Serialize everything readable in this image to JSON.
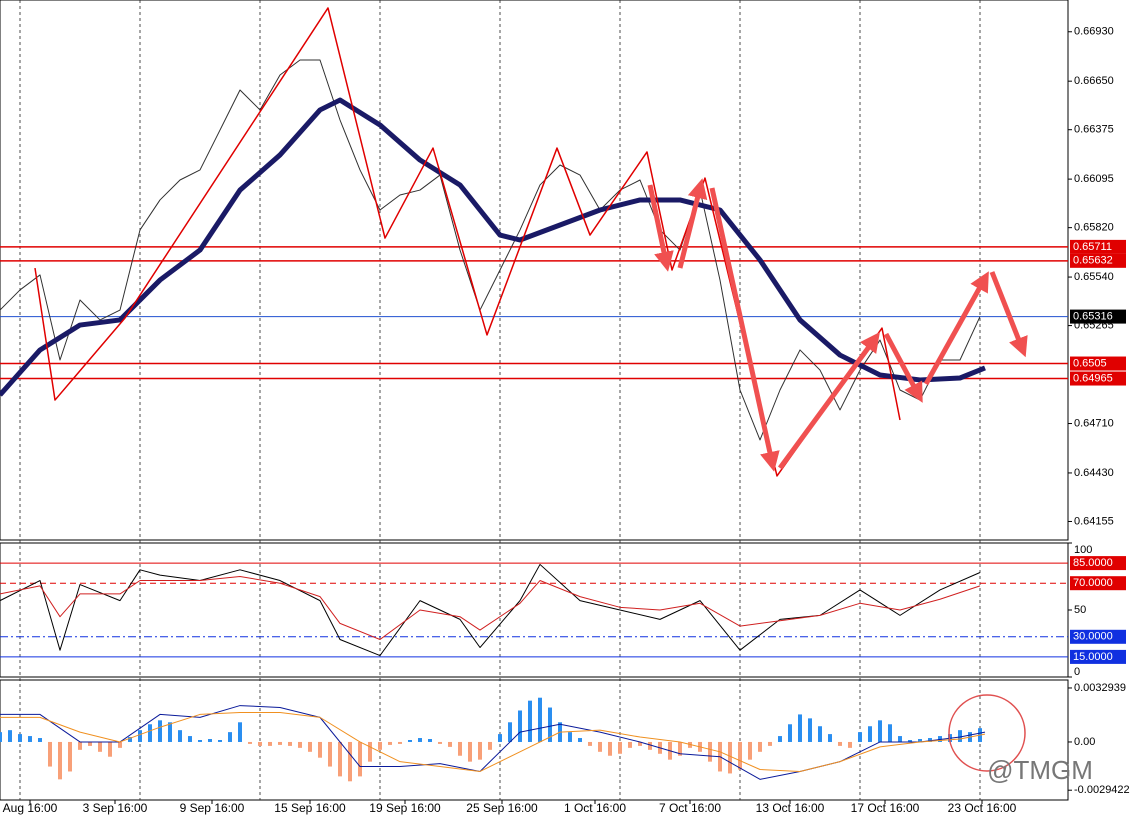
{
  "chart_data": [
    {
      "type": "line",
      "xlim": [
        0,
        53.4
      ],
      "ylim": [
        0.6405,
        0.6711
      ],
      "yticks": [
        {
          "value": 0.6693,
          "label": "0.66930"
        },
        {
          "value": 0.6665,
          "label": "0.66650"
        },
        0.66375,
        0.66095,
        {
          "value": 0.6582,
          "label": "0.65820"
        },
        {
          "value": 0.6554,
          "label": "0.65540"
        },
        0.65265,
        {
          "value": 0.6471,
          "label": "0.64710"
        },
        {
          "value": 0.6443,
          "label": "0.64430"
        },
        0.64155
      ],
      "xgrid": [
        1,
        7,
        13,
        19,
        25,
        31,
        37,
        43,
        49
      ],
      "levels": [
        {
          "value": 0.65711,
          "color": "#e00000"
        },
        {
          "value": 0.65632,
          "color": "#e00000"
        },
        {
          "value": 0.65316,
          "color": "#2050d0"
        },
        {
          "value": 0.6505,
          "color": "#e00000"
        },
        {
          "value": 0.64965,
          "color": "#e00000"
        }
      ],
      "series": [
        {
          "color": "#303030",
          "x": [
            0,
            1,
            2,
            3,
            4,
            5,
            6,
            7,
            8,
            9,
            10,
            11,
            12,
            13,
            14,
            15,
            16,
            17,
            18,
            19,
            20,
            21,
            22,
            23,
            24,
            25,
            26,
            27,
            28,
            29,
            30,
            31,
            32,
            33,
            34,
            35,
            36,
            37,
            38,
            39,
            40,
            41,
            42,
            43,
            44,
            45,
            46,
            47,
            48,
            49
          ],
          "values": [
            0.65353,
            0.65467,
            0.65552,
            0.6507,
            0.6541,
            0.65297,
            0.65353,
            0.65807,
            0.65977,
            0.6609,
            0.66147,
            0.66373,
            0.666,
            0.66487,
            0.66685,
            0.6677,
            0.6677,
            0.6643,
            0.66147,
            0.6592,
            0.66005,
            0.66033,
            0.66118,
            0.65693,
            0.65353,
            0.6558,
            0.65807,
            0.66062,
            0.66175,
            0.66118,
            0.6592,
            0.66033,
            0.6609,
            0.65807,
            0.65693,
            0.66033,
            0.65523,
            0.649,
            0.64617,
            0.649,
            0.65127,
            0.65013,
            0.64787,
            0.65013,
            0.65183,
            0.649,
            0.64843,
            0.6507,
            0.6507,
            0.65316
          ]
        },
        {
          "color": "#1a1a66",
          "x": [
            0,
            2,
            4,
            6,
            8,
            10,
            12,
            14,
            16,
            17,
            19,
            21,
            23,
            25,
            26,
            28,
            30,
            32,
            34,
            36,
            38,
            40,
            42,
            44,
            46,
            48,
            49.25
          ],
          "values": [
            0.64872,
            0.65127,
            0.65268,
            0.65297,
            0.65523,
            0.65693,
            0.66033,
            0.66232,
            0.66487,
            0.66543,
            0.66402,
            0.66203,
            0.66062,
            0.65778,
            0.6575,
            0.65835,
            0.6592,
            0.65977,
            0.65977,
            0.6592,
            0.65637,
            0.65297,
            0.65098,
            0.64985,
            0.64957,
            0.64968,
            0.65025
          ]
        },
        {
          "color": "#e00000",
          "x": [
            1.75,
            2.75,
            6.25,
            16.4,
            19.25,
            21.65,
            24.35,
            27.85,
            29.5,
            32.35,
            33.6,
            35.25,
            38.85,
            44.1,
            45
          ],
          "values": [
            0.65591,
            0.64843,
            0.65308,
            0.67065,
            0.65761,
            0.66271,
            0.65212,
            0.66271,
            0.65778,
            0.66249,
            0.6558,
            0.66101,
            0.64413,
            0.65251,
            0.6473
          ]
        }
      ]
    },
    {
      "type": "line",
      "xlim": [
        0,
        53.4
      ],
      "ylim": [
        0,
        100
      ],
      "yticks": [
        100,
        50,
        0
      ],
      "levels": [
        {
          "value": 85,
          "label": "85.0000",
          "color": "#e00000"
        },
        {
          "value": 70,
          "label": "70.0000",
          "color": "#e00000"
        },
        {
          "value": 30,
          "label": "30.0000",
          "color": "#1030e0"
        },
        {
          "value": 15,
          "label": "15.0000",
          "color": "#1030e0"
        }
      ],
      "series": [
        {
          "color": "#000000",
          "x": [
            0,
            2,
            3,
            4,
            6,
            7,
            8,
            10,
            12,
            14,
            16,
            17,
            19,
            21,
            23,
            24,
            26,
            27,
            29,
            31,
            33,
            35,
            37,
            39,
            41,
            43,
            45,
            47,
            49
          ],
          "values": [
            57,
            72,
            20,
            69,
            57,
            80,
            76,
            72,
            80,
            72,
            57,
            28,
            16,
            57,
            43,
            22,
            57,
            84,
            57,
            50,
            43,
            57,
            20,
            43,
            46,
            65,
            46,
            65,
            78
          ]
        },
        {
          "color": "#d02020",
          "x": [
            0,
            2,
            3,
            4,
            6,
            7,
            8,
            10,
            12,
            14,
            16,
            17,
            19,
            21,
            23,
            24,
            26,
            27,
            29,
            31,
            33,
            35,
            37,
            39,
            41,
            43,
            45,
            47,
            49
          ],
          "values": [
            62,
            68,
            45,
            62,
            62,
            72,
            72,
            72,
            75,
            70,
            60,
            40,
            28,
            50,
            45,
            35,
            55,
            72,
            60,
            52,
            50,
            55,
            38,
            42,
            46,
            55,
            50,
            58,
            68
          ]
        }
      ]
    },
    {
      "type": "bar",
      "xlim": [
        0,
        53.4
      ],
      "ylim": [
        -0.00354,
        0.00378
      ],
      "yticks": [
        0.0032939,
        {
          "value": 0,
          "label": "0.00"
        },
        -0.0029422
      ],
      "histogram": {
        "up_color": "#2a8ef0",
        "down_color": "#f8a078",
        "x": [
          0,
          0.5,
          1,
          1.5,
          2,
          2.5,
          3,
          3.5,
          4,
          4.5,
          5,
          5.5,
          6,
          6.5,
          7,
          7.5,
          8,
          8.5,
          9,
          9.5,
          10,
          10.5,
          11,
          11.5,
          12,
          12.5,
          13,
          13.5,
          14,
          14.5,
          15,
          15.5,
          16,
          16.5,
          17,
          17.5,
          18,
          18.5,
          19,
          19.5,
          20,
          20.5,
          21,
          21.5,
          22,
          22.5,
          23,
          23.5,
          24,
          24.5,
          25,
          25.5,
          26,
          26.5,
          27,
          27.5,
          28,
          28.5,
          29,
          29.5,
          30,
          30.5,
          31,
          31.5,
          32,
          32.5,
          33,
          33.5,
          34,
          34.5,
          35,
          35.5,
          36,
          36.5,
          37,
          37.5,
          38,
          38.5,
          39,
          39.5,
          40,
          40.5,
          41,
          41.5,
          42,
          42.5,
          43,
          43.5,
          44,
          44.5,
          45,
          45.5,
          46,
          46.5,
          47,
          47.5,
          48,
          48.5,
          49
        ],
        "values": [
          0.0006,
          0.00072,
          0.00048,
          0.00036,
          0.00024,
          -0.0015,
          -0.00228,
          -0.0018,
          -0.00048,
          -0.00024,
          -0.0006,
          -0.0009,
          -0.00036,
          0.0003,
          0.00072,
          0.00108,
          0.00132,
          0.0012,
          0.00072,
          0.00036,
          0.00012,
          0.00018,
          0.00012,
          0.0006,
          0.0012,
          -0.00012,
          -0.00024,
          -0.00024,
          -0.00018,
          -0.00024,
          -0.00036,
          -0.0006,
          -0.00096,
          -0.0015,
          -0.0021,
          -0.0024,
          -0.0021,
          -0.0012,
          -0.00048,
          -0.00018,
          -0.00012,
          0.00012,
          0.00024,
          0.00018,
          -0.00012,
          -0.0003,
          -0.00084,
          -0.0012,
          -0.00108,
          -0.00048,
          0.00048,
          0.0012,
          0.00192,
          0.00252,
          0.0027,
          0.0021,
          0.0012,
          0.0006,
          0.00024,
          -0.00024,
          -0.0006,
          -0.00084,
          -0.00072,
          -0.00036,
          -0.00024,
          -0.00048,
          -0.00072,
          -0.00108,
          -0.00084,
          -0.00036,
          -0.0006,
          -0.0012,
          -0.0018,
          -0.00192,
          -0.00168,
          -0.00108,
          -0.0006,
          -0.00024,
          0.00036,
          0.00108,
          0.00168,
          0.00144,
          0.00096,
          0.00048,
          -0.00024,
          -0.00036,
          0.0006,
          0.00096,
          0.00132,
          0.00108,
          0.00036,
          0.00012,
          0.00018,
          0.00024,
          0.00036,
          0.00048,
          0.00072,
          0.0006,
          0.00084
        ]
      },
      "series": [
        {
          "color": "#0a1a9a",
          "x": [
            0,
            2,
            4,
            6,
            8,
            10,
            12,
            14,
            16,
            18,
            20,
            22,
            24,
            26,
            28,
            30,
            32,
            34,
            36,
            38,
            40,
            42,
            44,
            46,
            48,
            49.25
          ],
          "values": [
            0.00168,
            0.00168,
            0,
            0,
            0.00168,
            0.0015,
            0.00222,
            0.0021,
            0.0015,
            -0.0015,
            -0.0015,
            -0.00132,
            -0.0018,
            0.0006,
            0.00108,
            0.0006,
            0,
            -0.00072,
            -0.0009,
            -0.00228,
            -0.0018,
            -0.0012,
            0,
            0,
            0.0003,
            0.0006
          ]
        },
        {
          "color": "#f09020",
          "x": [
            0,
            2,
            4,
            6,
            8,
            10,
            12,
            14,
            16,
            18,
            20,
            22,
            24,
            26,
            28,
            30,
            32,
            34,
            36,
            38,
            40,
            42,
            44,
            46,
            48,
            49.25
          ],
          "values": [
            0.0015,
            0.0015,
            0.0006,
            0,
            0.0009,
            0.00168,
            0.0018,
            0.0018,
            0.0015,
            0,
            -0.0012,
            -0.0015,
            -0.0018,
            -0.0006,
            0.0006,
            0.00072,
            0.0003,
            0,
            -0.0006,
            -0.00168,
            -0.0018,
            -0.0012,
            -0.0003,
            0,
            0.00018,
            0.00048
          ]
        }
      ],
      "xticks": [
        {
          "value": 1.5,
          "label": "Aug 16:00"
        },
        {
          "value": 5.75,
          "label": "3 Sep 16:00"
        },
        {
          "value": 10.6,
          "label": "9 Sep 16:00"
        },
        {
          "value": 15.5,
          "label": "15 Sep 16:00"
        },
        {
          "value": 20.25,
          "label": "19 Sep 16:00"
        },
        {
          "value": 25.1,
          "label": "25 Sep 16:00"
        },
        {
          "value": 29.75,
          "label": "1 Oct 16:00"
        },
        {
          "value": 34.5,
          "label": "7 Oct 16:00"
        },
        {
          "value": 39.5,
          "label": "13 Oct 16:00"
        },
        {
          "value": 44.25,
          "label": "17 Oct 16:00"
        },
        {
          "value": 49.1,
          "label": "23 Oct 16:00"
        }
      ],
      "watermark": "@TMGM"
    }
  ]
}
